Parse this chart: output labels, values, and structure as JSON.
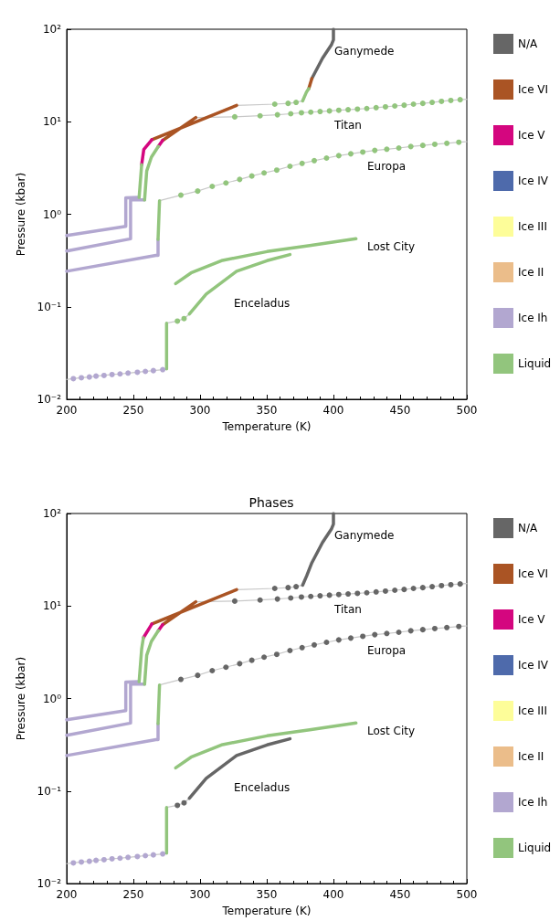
{
  "chart_data": [
    {
      "type": "line",
      "xlabel": "Temperature (K)",
      "ylabel": "Pressure (kbar)",
      "xlim": [
        200,
        500
      ],
      "ylim": [
        0.01,
        100
      ],
      "xticks": [
        200,
        250,
        300,
        350,
        400,
        450,
        500
      ],
      "yticks": [
        {
          "value": 0.01,
          "label": "10⁻²"
        },
        {
          "value": 0.1,
          "label": "10⁻¹"
        },
        {
          "value": 1,
          "label": "10⁰"
        },
        {
          "value": 10,
          "label": "10¹"
        },
        {
          "value": 100,
          "label": "10²"
        }
      ],
      "log": "y",
      "grid": false,
      "legend": "right",
      "annotations": [
        "Ganymede",
        "Titan",
        "Europa",
        "Lost City",
        "Enceladus"
      ],
      "series": [
        {
          "type": "line",
          "color": "#c8c8c8",
          "marker": "none",
          "x": [
            327.4,
            356,
            366,
            372,
            376.9
          ],
          "values": [
            15.0,
            15.5,
            15.8,
            16.2,
            16.8
          ]
        },
        {
          "type": "line",
          "color": "#c8c8c8",
          "marker": "none",
          "x": [
            296.8,
            326,
            345,
            358,
            368,
            376,
            383,
            390,
            397,
            404,
            411,
            418,
            425,
            432,
            439,
            446,
            453,
            460,
            467,
            474,
            481,
            488,
            495,
            500
          ],
          "values": [
            11.1,
            11.3,
            11.6,
            11.9,
            12.2,
            12.5,
            12.7,
            12.9,
            13.1,
            13.3,
            13.5,
            13.7,
            13.9,
            14.2,
            14.5,
            14.8,
            15.1,
            15.5,
            15.8,
            16.2,
            16.6,
            17.0,
            17.3,
            17.5
          ]
        },
        {
          "type": "line",
          "color": "#c8c8c8",
          "marker": "none",
          "x": [
            269.6,
            285.6,
            298.2,
            309.1,
            319.4,
            329.7,
            338.8,
            348,
            357.5,
            367.4,
            376.5,
            385.6,
            394.8,
            404,
            413,
            422,
            431,
            440,
            449,
            458,
            467,
            476,
            485,
            494,
            500
          ],
          "values": [
            1.4,
            1.61,
            1.78,
            2.0,
            2.18,
            2.38,
            2.59,
            2.8,
            3.0,
            3.3,
            3.55,
            3.8,
            4.05,
            4.3,
            4.5,
            4.7,
            4.9,
            5.05,
            5.2,
            5.4,
            5.55,
            5.7,
            5.85,
            6.0,
            6.1
          ]
        },
        {
          "type": "line",
          "color": "#c8c8c8",
          "marker": "none",
          "x": [
            200,
            205,
            211,
            217,
            222,
            228,
            234,
            240,
            246,
            253,
            259,
            265,
            272,
            274.9
          ],
          "values": [
            0.0164,
            0.0167,
            0.0171,
            0.0174,
            0.0178,
            0.0181,
            0.0185,
            0.0188,
            0.0192,
            0.0196,
            0.02,
            0.0204,
            0.0209,
            0.0213
          ]
        },
        {
          "type": "line",
          "color": "#c8c8c8",
          "marker": "none",
          "x": [
            274.9,
            283,
            288,
            292
          ],
          "values": [
            0.0665,
            0.07,
            0.0745,
            0.0835
          ]
        },
        {
          "type": "line",
          "name": "N/A",
          "color": "#666666",
          "marker": "none",
          "x": [
            383.8,
            391.8,
            398.6,
            400,
            400
          ],
          "values": [
            29.3,
            48.6,
            68.4,
            76.8,
            100
          ]
        },
        {
          "type": "line",
          "name": "Ice VI",
          "color": "#aa5424",
          "marker": "none",
          "x": [
            263.9,
            327.4,
            null,
            271.9,
            296.8,
            null,
            381.5,
            383.8
          ],
          "values": [
            6.4,
            15.0,
            null,
            6.28,
            11.1,
            null,
            22.8,
            29.3
          ]
        },
        {
          "type": "line",
          "name": "Ice V",
          "color": "#d4067f",
          "marker": "none",
          "x": [
            256.2,
            257.8,
            263.9,
            null,
            268.7,
            271.9
          ],
          "values": [
            3.43,
            5.0,
            6.4,
            null,
            5.41,
            6.28
          ]
        },
        {
          "type": "line",
          "name": "Ice IV",
          "color": "#4e6aab",
          "marker": "none"
        },
        {
          "type": "line",
          "name": "Ice III",
          "color": "#fdfd99",
          "marker": "none"
        },
        {
          "type": "line",
          "name": "Ice II",
          "color": "#ebbd8a",
          "marker": "none"
        },
        {
          "type": "line",
          "name": "Ice Ih",
          "color": "#b2a7d0",
          "marker": "none",
          "x": [
            200,
            244.3,
            244.3,
            254.3,
            null,
            200,
            247.9,
            247.9,
            258.4,
            null,
            200,
            266.9,
            268.5,
            268.5
          ],
          "values": [
            0.59,
            0.74,
            1.51,
            1.52,
            null,
            0.4,
            0.543,
            1.43,
            1.43,
            null,
            0.242,
            0.36,
            0.36,
            0.535
          ]
        },
        {
          "type": "line",
          "name": "Liquid",
          "color": "#92c57d",
          "marker": "none",
          "x": [
            254.3,
            256.2,
            null,
            376.9,
            379.9,
            381.5,
            null,
            258.4,
            260,
            263.5,
            268.7,
            null,
            268.5,
            269.6,
            null,
            281.7,
            293.2,
            316,
            350.2,
            382.2,
            416.9,
            null,
            274.9,
            274.9,
            null,
            292,
            304.6,
            327.4,
            350.2,
            367.4
          ],
          "values": [
            1.52,
            3.43,
            null,
            16.8,
            21.1,
            22.8,
            null,
            1.43,
            2.94,
            4.14,
            5.41,
            null,
            0.535,
            1.4,
            null,
            0.178,
            0.232,
            0.315,
            0.395,
            0.46,
            0.543,
            null,
            0.0213,
            0.0665,
            null,
            0.0835,
            0.137,
            0.242,
            0.315,
            0.367
          ]
        },
        {
          "type": "scatter",
          "color": "#b2a7d0",
          "marker": "circle",
          "x": [
            205,
            211,
            217,
            222,
            228,
            234,
            240,
            246,
            253,
            259,
            265,
            272
          ],
          "values": [
            0.0167,
            0.0171,
            0.0174,
            0.0178,
            0.0181,
            0.0185,
            0.0188,
            0.0192,
            0.0196,
            0.02,
            0.0204,
            0.0209
          ]
        },
        {
          "type": "scatter",
          "color": "#92c57d",
          "marker": "circle",
          "x": [
            356,
            366,
            372,
            326,
            345,
            358,
            368,
            376,
            383,
            390,
            397,
            404,
            411,
            418,
            425,
            432,
            439,
            446,
            453,
            460,
            467,
            474,
            481,
            488,
            495,
            285.6,
            298.2,
            309.1,
            319.4,
            329.7,
            338.8,
            348,
            357.5,
            367.4,
            376.5,
            385.6,
            394.8,
            404,
            413,
            422,
            431,
            440,
            449,
            458,
            467,
            476,
            485,
            494,
            283,
            288
          ],
          "values": [
            15.5,
            15.8,
            16.2,
            11.3,
            11.6,
            11.9,
            12.2,
            12.5,
            12.7,
            12.9,
            13.1,
            13.3,
            13.5,
            13.7,
            13.9,
            14.2,
            14.5,
            14.8,
            15.1,
            15.5,
            15.8,
            16.2,
            16.6,
            17.0,
            17.3,
            1.61,
            1.78,
            2.0,
            2.18,
            2.38,
            2.59,
            2.8,
            3.0,
            3.3,
            3.55,
            3.8,
            4.05,
            4.3,
            4.5,
            4.7,
            4.9,
            5.05,
            5.2,
            5.4,
            5.55,
            5.7,
            5.85,
            6.0,
            0.07,
            0.0745
          ]
        }
      ]
    },
    {
      "type": "line",
      "title": "Phases",
      "xlabel": "Temperature (K)",
      "ylabel": "Pressure (kbar)",
      "xlim": [
        200,
        500
      ],
      "ylim": [
        0.01,
        100
      ],
      "xticks": [
        200,
        250,
        300,
        350,
        400,
        450,
        500
      ],
      "yticks": [
        {
          "value": 0.01,
          "label": "10⁻²"
        },
        {
          "value": 0.1,
          "label": "10⁻¹"
        },
        {
          "value": 1,
          "label": "10⁰"
        },
        {
          "value": 10,
          "label": "10¹"
        },
        {
          "value": 100,
          "label": "10²"
        }
      ],
      "log": "y",
      "grid": false,
      "legend": "right",
      "annotations": [
        "Ganymede",
        "Titan",
        "Europa",
        "Lost City",
        "Enceladus"
      ],
      "series": [
        {
          "type": "line",
          "color": "#c8c8c8",
          "marker": "none",
          "x": [
            327.4,
            356,
            366,
            372,
            376.9
          ],
          "values": [
            15.0,
            15.5,
            15.8,
            16.2,
            16.8
          ]
        },
        {
          "type": "line",
          "color": "#c8c8c8",
          "marker": "none",
          "x": [
            296.8,
            326,
            345,
            358,
            368,
            376,
            383,
            390,
            397,
            404,
            411,
            418,
            425,
            432,
            439,
            446,
            453,
            460,
            467,
            474,
            481,
            488,
            495,
            500
          ],
          "values": [
            11.1,
            11.3,
            11.6,
            11.9,
            12.2,
            12.5,
            12.7,
            12.9,
            13.1,
            13.3,
            13.5,
            13.7,
            13.9,
            14.2,
            14.5,
            14.8,
            15.1,
            15.5,
            15.8,
            16.2,
            16.6,
            17.0,
            17.3,
            17.5
          ]
        },
        {
          "type": "line",
          "color": "#c8c8c8",
          "marker": "none",
          "x": [
            269.6,
            285.6,
            298.2,
            309.1,
            319.4,
            329.7,
            338.8,
            348,
            357.5,
            367.4,
            376.5,
            385.6,
            394.8,
            404,
            413,
            422,
            431,
            440,
            449,
            458,
            467,
            476,
            485,
            494,
            500
          ],
          "values": [
            1.4,
            1.61,
            1.78,
            2.0,
            2.18,
            2.38,
            2.59,
            2.8,
            3.0,
            3.3,
            3.55,
            3.8,
            4.05,
            4.3,
            4.5,
            4.7,
            4.9,
            5.05,
            5.2,
            5.4,
            5.55,
            5.7,
            5.85,
            6.0,
            6.1
          ]
        },
        {
          "type": "line",
          "color": "#c8c8c8",
          "marker": "none",
          "x": [
            200,
            205,
            211,
            217,
            222,
            228,
            234,
            240,
            246,
            253,
            259,
            265,
            272,
            274.9
          ],
          "values": [
            0.0164,
            0.0167,
            0.0171,
            0.0174,
            0.0178,
            0.0181,
            0.0185,
            0.0188,
            0.0192,
            0.0196,
            0.02,
            0.0204,
            0.0209,
            0.0213
          ]
        },
        {
          "type": "line",
          "color": "#c8c8c8",
          "marker": "none",
          "x": [
            274.9,
            283,
            288,
            292
          ],
          "values": [
            0.0665,
            0.07,
            0.0745,
            0.0835
          ]
        },
        {
          "type": "line",
          "name": "N/A",
          "color": "#666666",
          "marker": "none",
          "x": [
            376.9,
            379.9,
            383.8,
            391.8,
            398.6,
            400,
            400,
            null,
            292,
            304.6,
            327.4,
            350.2,
            367.4
          ],
          "values": [
            16.8,
            21.1,
            29.3,
            48.6,
            68.4,
            76.8,
            100,
            null,
            0.0835,
            0.137,
            0.242,
            0.315,
            0.367
          ]
        },
        {
          "type": "line",
          "name": "Ice VI",
          "color": "#aa5424",
          "marker": "none",
          "x": [
            263.9,
            327.4,
            null,
            271.9,
            296.8
          ],
          "values": [
            6.4,
            15.0,
            null,
            6.28,
            11.1
          ]
        },
        {
          "type": "line",
          "name": "Ice V",
          "color": "#d4067f",
          "marker": "none",
          "x": [
            257.5,
            263.9,
            null,
            268.7,
            271.9
          ],
          "values": [
            4.54,
            6.4,
            null,
            5.41,
            6.28
          ]
        },
        {
          "type": "line",
          "name": "Ice IV",
          "color": "#4e6aab",
          "marker": "none"
        },
        {
          "type": "line",
          "name": "Ice III",
          "color": "#fdfd99",
          "marker": "none"
        },
        {
          "type": "line",
          "name": "Ice II",
          "color": "#ebbd8a",
          "marker": "none"
        },
        {
          "type": "line",
          "name": "Ice Ih",
          "color": "#b2a7d0",
          "marker": "none",
          "x": [
            200,
            244.3,
            244.3,
            254.3,
            null,
            200,
            247.9,
            247.9,
            258.4,
            null,
            200,
            266.9,
            268.5,
            268.5
          ],
          "values": [
            0.59,
            0.74,
            1.51,
            1.52,
            null,
            0.4,
            0.543,
            1.43,
            1.43,
            null,
            0.242,
            0.36,
            0.36,
            0.535
          ]
        },
        {
          "type": "line",
          "name": "Liquid",
          "color": "#92c57d",
          "marker": "none",
          "x": [
            254.3,
            256.2,
            257.5,
            null,
            258.4,
            260,
            263.5,
            268.7,
            null,
            268.5,
            269.6,
            null,
            281.7,
            293.2,
            316,
            350.2,
            382.2,
            416.9,
            null,
            274.9,
            274.9
          ],
          "values": [
            1.52,
            3.43,
            4.54,
            null,
            1.43,
            2.94,
            4.14,
            5.41,
            null,
            0.535,
            1.4,
            null,
            0.178,
            0.232,
            0.315,
            0.395,
            0.46,
            0.543,
            null,
            0.0213,
            0.0665
          ]
        },
        {
          "type": "scatter",
          "color": "#b2a7d0",
          "marker": "circle",
          "x": [
            205,
            211,
            217,
            222,
            228,
            234,
            240,
            246,
            253,
            259,
            265,
            272
          ],
          "values": [
            0.0167,
            0.0171,
            0.0174,
            0.0178,
            0.0181,
            0.0185,
            0.0188,
            0.0192,
            0.0196,
            0.02,
            0.0204,
            0.0209
          ]
        },
        {
          "type": "scatter",
          "color": "#666666",
          "marker": "circle",
          "x": [
            356,
            366,
            372,
            326,
            345,
            358,
            368,
            376,
            383,
            390,
            397,
            404,
            411,
            418,
            425,
            432,
            439,
            446,
            453,
            460,
            467,
            474,
            481,
            488,
            495,
            285.6,
            298.2,
            309.1,
            319.4,
            329.7,
            338.8,
            348,
            357.5,
            367.4,
            376.5,
            385.6,
            394.8,
            404,
            413,
            422,
            431,
            440,
            449,
            458,
            467,
            476,
            485,
            494,
            283,
            288
          ],
          "values": [
            15.5,
            15.8,
            16.2,
            11.3,
            11.6,
            11.9,
            12.2,
            12.5,
            12.7,
            12.9,
            13.1,
            13.3,
            13.5,
            13.7,
            13.9,
            14.2,
            14.5,
            14.8,
            15.1,
            15.5,
            15.8,
            16.2,
            16.6,
            17.0,
            17.3,
            1.61,
            1.78,
            2.0,
            2.18,
            2.38,
            2.59,
            2.8,
            3.0,
            3.3,
            3.55,
            3.8,
            4.05,
            4.3,
            4.5,
            4.7,
            4.9,
            5.05,
            5.2,
            5.4,
            5.55,
            5.7,
            5.85,
            6.0,
            0.07,
            0.0745
          ]
        }
      ]
    }
  ]
}
